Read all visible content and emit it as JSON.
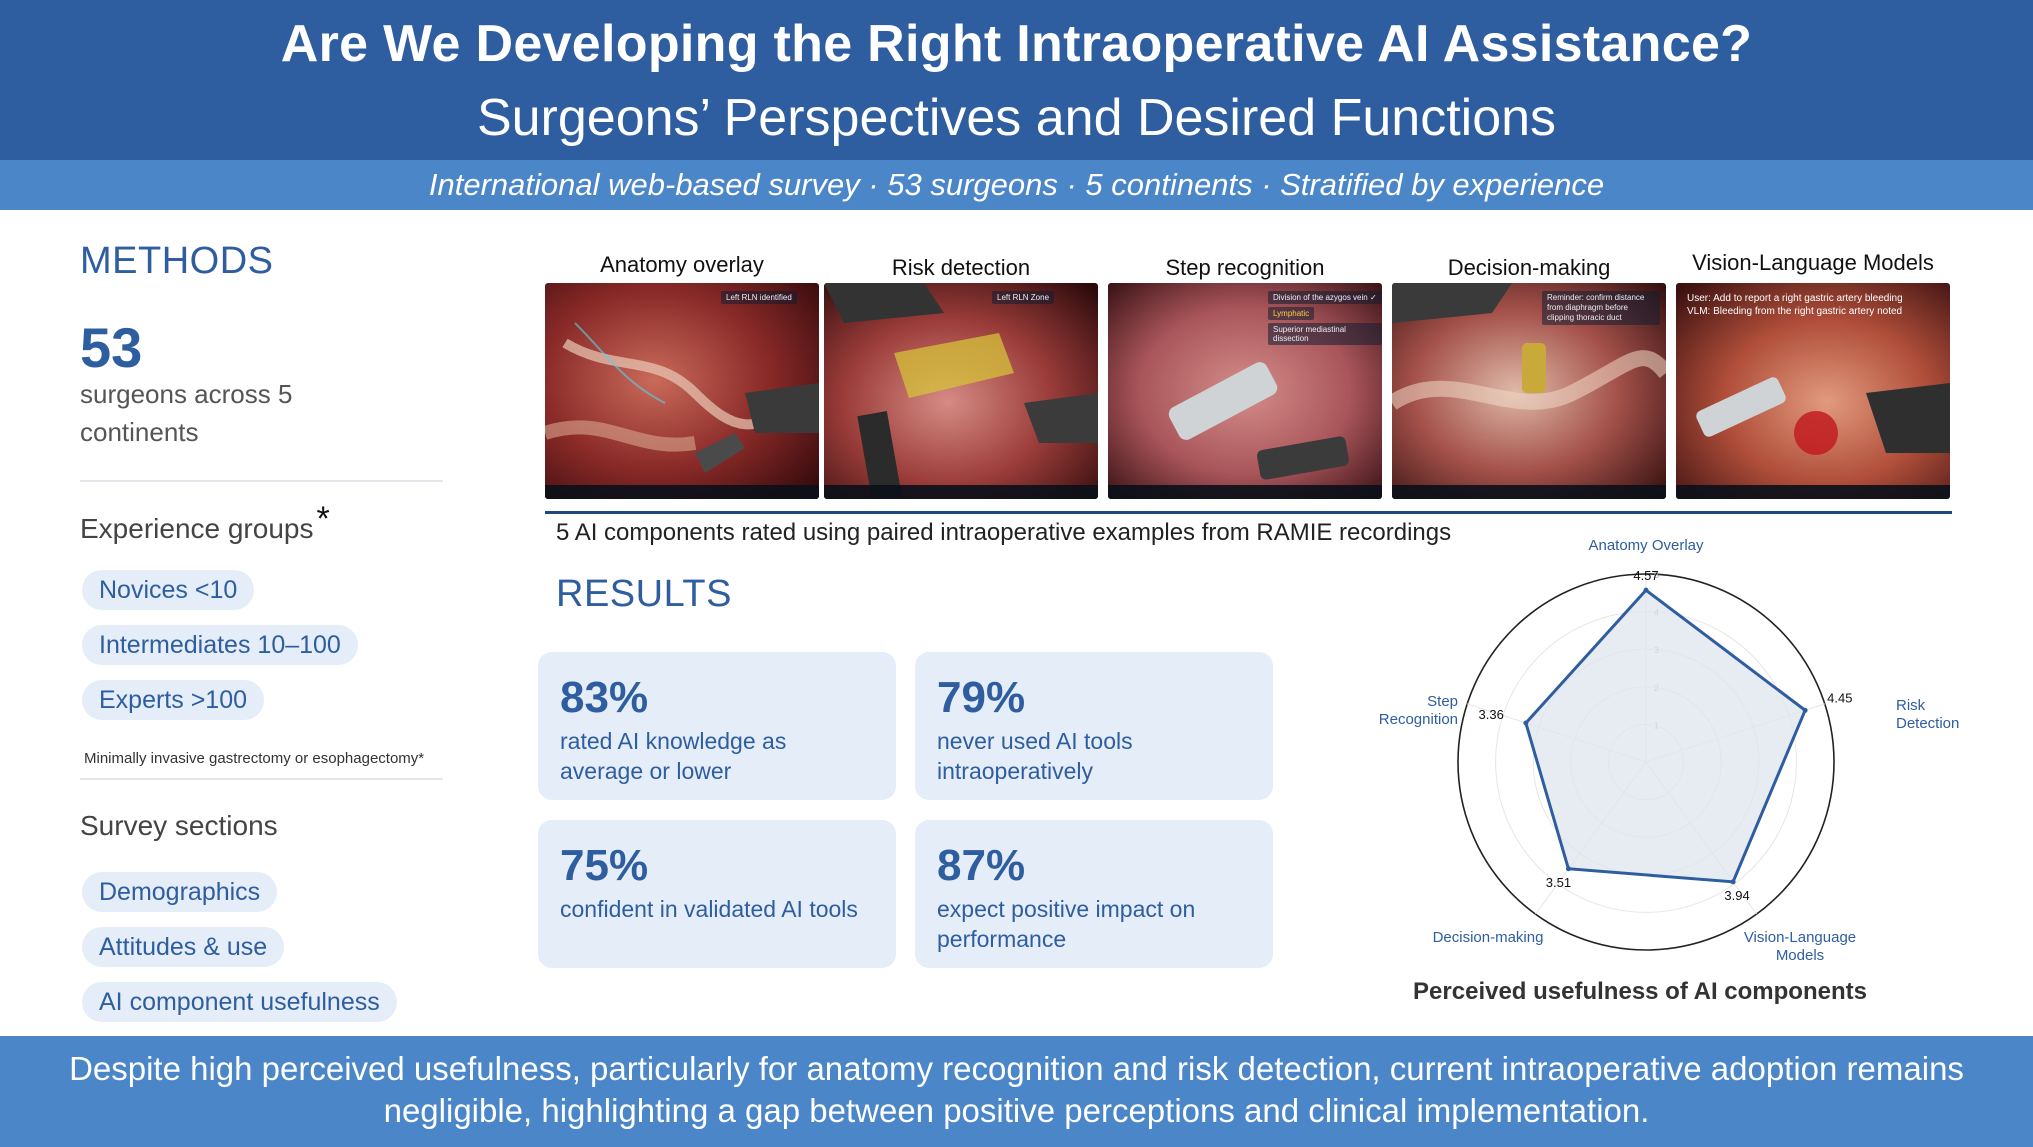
{
  "header": {
    "title": "Are We Developing the Right Intraoperative AI Assistance?",
    "subtitle": "Surgeons’ Perspectives and Desired Functions",
    "banner": "International web-based survey  ·  53 surgeons  ·  5 continents  ·  Stratified by experience"
  },
  "methods": {
    "heading": "METHODS",
    "count": "53",
    "count_label": "surgeons across 5 continents",
    "experience_heading": "Experience groups",
    "experience_asterisk": "*",
    "experience_groups": [
      "Novices <10",
      "Intermediates 10–100",
      "Experts >100"
    ],
    "footnote": "Minimally invasive gastrectomy or esophagectomy*",
    "survey_heading": "Survey sections",
    "survey_sections": [
      "Demographics",
      "Attitudes & use",
      "AI component usefulness"
    ]
  },
  "panels": [
    {
      "title": "Anatomy overlay",
      "tags": [
        "Left RLN identified"
      ]
    },
    {
      "title": "Risk detection",
      "tags": [
        "Left RLN Zone"
      ]
    },
    {
      "title": "Step recognition",
      "tags": [
        "Division of the azygos vein ✓",
        "Lymphatic",
        "Superior mediastinal dissection"
      ]
    },
    {
      "title": "Decision-making",
      "tags": [
        "Reminder: confirm distance from diaphragm before clipping thoracic duct"
      ]
    },
    {
      "title": "Vision-Language Models",
      "tags": [
        "User: Add to report a right gastric artery bleeding",
        "VLM: Bleeding from the right gastric artery noted"
      ]
    }
  ],
  "caption": "5 AI components rated using paired intraoperative examples from RAMIE recordings",
  "results": {
    "heading": "RESULTS",
    "cards": [
      {
        "pct": "83%",
        "desc": "rated AI knowledge as average or lower"
      },
      {
        "pct": "79%",
        "desc": "never used AI tools intraoperatively"
      },
      {
        "pct": "75%",
        "desc": "confident in validated AI tools"
      },
      {
        "pct": "87%",
        "desc": "expect positive impact on performance"
      }
    ]
  },
  "chart_data": {
    "type": "radar",
    "title": "Perceived usefulness of AI components",
    "axes": [
      "Anatomy Overlay",
      "Risk Detection",
      "Vision-Language Models",
      "Decision-making",
      "Step Recognition"
    ],
    "axis_labels_display": [
      [
        "Anatomy Overlay"
      ],
      [
        "Risk",
        "Detection"
      ],
      [
        "Vision-Language",
        "Models"
      ],
      [
        "Decision-making"
      ],
      [
        "Step",
        "Recognition"
      ]
    ],
    "values": [
      4.57,
      4.45,
      3.94,
      3.51,
      3.36
    ],
    "value_labels": [
      "4.57",
      "4.45",
      "3.94",
      "3.51",
      "3.36"
    ],
    "range": [
      0,
      5
    ],
    "ring_ticks": [
      "1",
      "2",
      "3",
      "4",
      "5"
    ],
    "colors": {
      "line": "#2e5da0",
      "fill": "#dfe5ee"
    }
  },
  "footer": {
    "text": "Despite high perceived usefulness, particularly for anatomy recognition and risk detection, current intraoperative adoption remains negligible, highlighting a gap between positive perceptions and clinical implementation."
  }
}
